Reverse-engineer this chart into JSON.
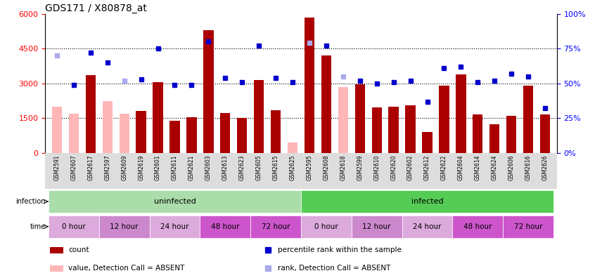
{
  "title": "GDS171 / X80878_at",
  "samples": [
    "GSM2591",
    "GSM2607",
    "GSM2617",
    "GSM2597",
    "GSM2609",
    "GSM2619",
    "GSM2601",
    "GSM2611",
    "GSM2621",
    "GSM2603",
    "GSM2613",
    "GSM2623",
    "GSM2605",
    "GSM2615",
    "GSM2625",
    "GSM2595",
    "GSM2608",
    "GSM2618",
    "GSM2599",
    "GSM2610",
    "GSM2620",
    "GSM2602",
    "GSM2612",
    "GSM2622",
    "GSM2604",
    "GSM2614",
    "GSM2624",
    "GSM2606",
    "GSM2616",
    "GSM2626"
  ],
  "bar_values": [
    2000,
    1700,
    3350,
    2250,
    1700,
    1800,
    3050,
    1380,
    1550,
    5300,
    1720,
    1500,
    3150,
    1850,
    450,
    5850,
    4200,
    2850,
    2950,
    1950,
    2000,
    2050,
    900,
    2900,
    3400,
    1650,
    1250,
    1600,
    2900,
    1650
  ],
  "bar_absent": [
    true,
    true,
    false,
    true,
    true,
    false,
    false,
    false,
    false,
    false,
    false,
    false,
    false,
    false,
    true,
    false,
    false,
    true,
    false,
    false,
    false,
    false,
    false,
    false,
    false,
    false,
    false,
    false,
    false,
    false
  ],
  "rank_values": [
    70,
    49,
    72,
    65,
    52,
    53,
    75,
    49,
    49,
    80,
    54,
    51,
    77,
    54,
    51,
    79,
    77,
    55,
    52,
    50,
    51,
    52,
    37,
    61,
    62,
    51,
    52,
    57,
    55,
    32
  ],
  "rank_absent": [
    true,
    false,
    false,
    false,
    true,
    false,
    false,
    false,
    false,
    false,
    false,
    false,
    false,
    false,
    false,
    true,
    false,
    true,
    false,
    false,
    false,
    false,
    false,
    false,
    false,
    false,
    false,
    false,
    false,
    false
  ],
  "ylim_left": [
    0,
    6000
  ],
  "ylim_right": [
    0,
    100
  ],
  "yticks_left": [
    0,
    1500,
    3000,
    4500,
    6000
  ],
  "yticks_right": [
    0,
    25,
    50,
    75,
    100
  ],
  "bar_color_normal": "#aa0000",
  "bar_color_absent": "#ffb6b6",
  "rank_color_normal": "#0000cc",
  "rank_color_absent": "#aaaaee",
  "infection_groups": [
    {
      "label": "uninfected",
      "start": 0,
      "end": 15,
      "color": "#aaddaa"
    },
    {
      "label": "infected",
      "start": 15,
      "end": 30,
      "color": "#55cc55"
    }
  ],
  "time_groups": [
    {
      "label": "0 hour",
      "start": 0,
      "end": 3,
      "color": "#ddaadd"
    },
    {
      "label": "12 hour",
      "start": 3,
      "end": 6,
      "color": "#cc88cc"
    },
    {
      "label": "24 hour",
      "start": 6,
      "end": 9,
      "color": "#ddaadd"
    },
    {
      "label": "48 hour",
      "start": 9,
      "end": 12,
      "color": "#cc55cc"
    },
    {
      "label": "72 hour",
      "start": 12,
      "end": 15,
      "color": "#cc55cc"
    },
    {
      "label": "0 hour",
      "start": 15,
      "end": 18,
      "color": "#ddaadd"
    },
    {
      "label": "12 hour",
      "start": 18,
      "end": 21,
      "color": "#cc88cc"
    },
    {
      "label": "24 hour",
      "start": 21,
      "end": 24,
      "color": "#ddaadd"
    },
    {
      "label": "48 hour",
      "start": 24,
      "end": 27,
      "color": "#cc55cc"
    },
    {
      "label": "72 hour",
      "start": 27,
      "end": 30,
      "color": "#cc55cc"
    }
  ],
  "legend_items": [
    {
      "label": "count",
      "color": "#aa0000",
      "type": "bar"
    },
    {
      "label": "percentile rank within the sample",
      "color": "#0000cc",
      "type": "square"
    },
    {
      "label": "value, Detection Call = ABSENT",
      "color": "#ffb6b6",
      "type": "bar"
    },
    {
      "label": "rank, Detection Call = ABSENT",
      "color": "#aaaaee",
      "type": "square"
    }
  ]
}
